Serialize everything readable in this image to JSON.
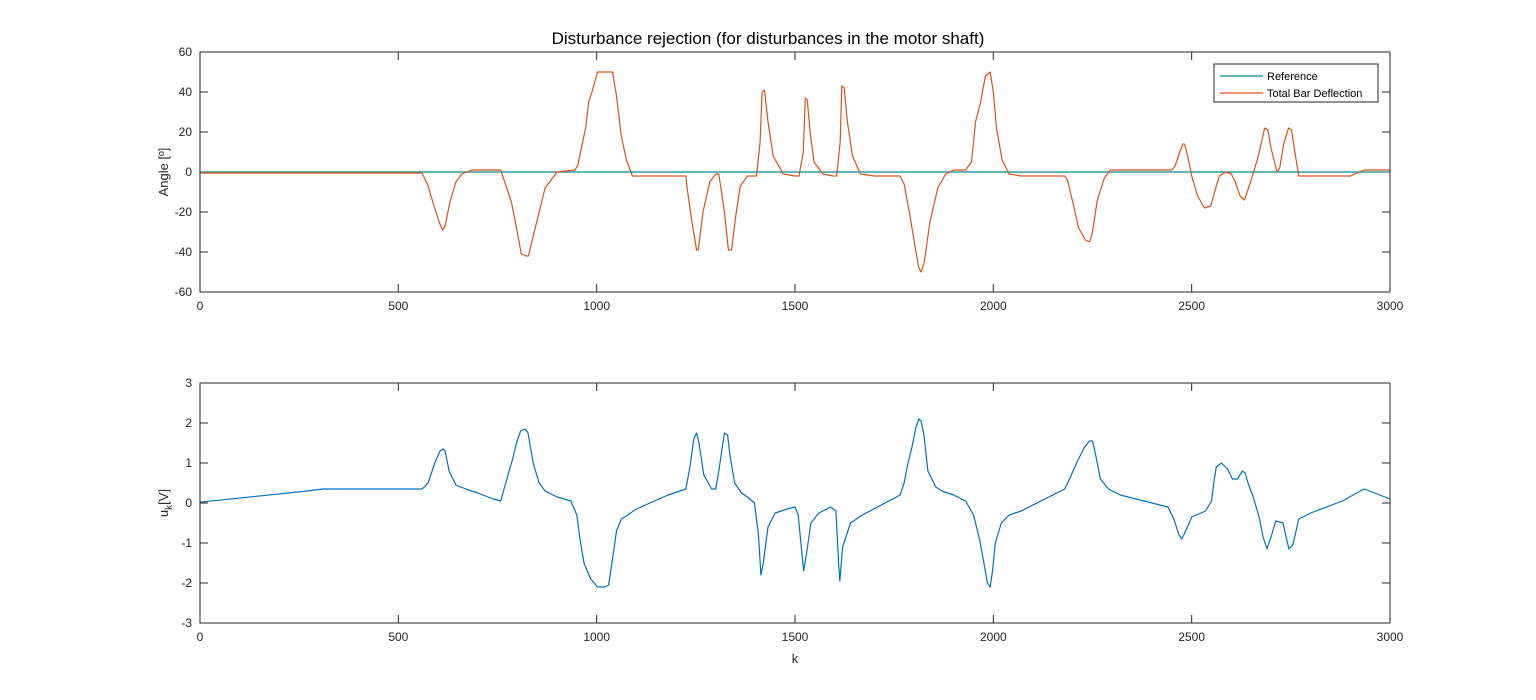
{
  "chart_data": [
    {
      "type": "line",
      "title": "Disturbance rejection (for disturbances in the motor shaft)",
      "xlabel": "",
      "ylabel": "Angle [º]",
      "xlim": [
        0,
        3000
      ],
      "ylim": [
        -60,
        60
      ],
      "xticks": [
        0,
        500,
        1000,
        1500,
        2000,
        2500,
        3000
      ],
      "yticks": [
        -60,
        -40,
        -20,
        0,
        20,
        40,
        60
      ],
      "grid": false,
      "legend_position": "top-right",
      "series": [
        {
          "name": "Reference",
          "color": "#0f8a8f",
          "x": [
            0,
            3000
          ],
          "y": [
            0,
            0
          ]
        },
        {
          "name": "Total Bar Deflection",
          "color": "#d95319",
          "x": [
            0,
            560,
            575,
            590,
            603,
            611,
            618,
            630,
            645,
            660,
            685,
            758,
            765,
            785,
            798,
            810,
            823,
            828,
            845,
            870,
            900,
            945,
            952,
            972,
            980,
            988,
            1002,
            1040,
            1050,
            1062,
            1075,
            1090,
            1150,
            1225,
            1228,
            1240,
            1252,
            1256,
            1268,
            1285,
            1300,
            1308,
            1322,
            1332,
            1340,
            1352,
            1362,
            1380,
            1403,
            1412,
            1417,
            1423,
            1432,
            1445,
            1470,
            1500,
            1510,
            1521,
            1526,
            1531,
            1538,
            1548,
            1570,
            1595,
            1605,
            1614,
            1618,
            1624,
            1632,
            1645,
            1665,
            1700,
            1765,
            1775,
            1790,
            1805,
            1812,
            1818,
            1826,
            1840,
            1860,
            1880,
            1900,
            1930,
            1945,
            1955,
            1968,
            1980,
            1992,
            2000,
            2008,
            2022,
            2040,
            2070,
            2180,
            2187,
            2200,
            2215,
            2232,
            2243,
            2250,
            2262,
            2280,
            2295,
            2320,
            2450,
            2458,
            2470,
            2478,
            2482,
            2490,
            2500,
            2515,
            2532,
            2548,
            2562,
            2570,
            2585,
            2600,
            2610,
            2622,
            2633,
            2640,
            2650,
            2668,
            2684,
            2692,
            2700,
            2715,
            2722,
            2732,
            2744,
            2752,
            2760,
            2770,
            2800,
            2900,
            2935,
            2945,
            2950,
            3000
          ],
          "y": [
            -0.5,
            -0.5,
            -7,
            -17,
            -25,
            -29,
            -27,
            -15,
            -5,
            -1,
            1,
            1,
            -3,
            -15,
            -28,
            -41,
            -42,
            -42,
            -28,
            -8,
            0,
            1,
            3,
            22,
            35,
            40,
            50,
            50,
            38,
            18,
            6,
            -2,
            -2,
            -2,
            -8,
            -25,
            -39,
            -39,
            -20,
            -5,
            -1,
            -1,
            -20,
            -39,
            -39,
            -20,
            -7,
            -2,
            -2,
            15,
            40,
            41,
            25,
            8,
            -1,
            -2,
            -2,
            10,
            37,
            36,
            20,
            5,
            -1,
            -2,
            -2,
            15,
            43,
            42,
            25,
            8,
            -1,
            -2,
            -2,
            -6,
            -22,
            -40,
            -48,
            -50,
            -45,
            -25,
            -8,
            -1,
            1,
            1,
            5,
            25,
            35,
            48,
            50,
            40,
            22,
            6,
            -1,
            -2,
            -2,
            -4,
            -15,
            -28,
            -34,
            -35,
            -30,
            -14,
            -3,
            1,
            1,
            1,
            3,
            10,
            14,
            14,
            8,
            -2,
            -12,
            -18,
            -17,
            -7,
            -2,
            0,
            -1,
            -5,
            -12,
            -14,
            -10,
            -4,
            8,
            22,
            21,
            12,
            0,
            2,
            14,
            22,
            21,
            10,
            -2,
            -2,
            -2,
            1,
            1,
            1,
            1
          ]
        }
      ]
    },
    {
      "type": "line",
      "title": "",
      "xlabel": "k",
      "ylabel": "u_k [V]",
      "ylabel_main": "u",
      "ylabel_sub": "k",
      "ylabel_rest": "[V]",
      "xlim": [
        0,
        3000
      ],
      "ylim": [
        -3,
        3
      ],
      "xticks": [
        0,
        500,
        1000,
        1500,
        2000,
        2500,
        3000
      ],
      "yticks": [
        -3,
        -2,
        -1,
        0,
        1,
        2,
        3
      ],
      "grid": false,
      "series": [
        {
          "color": "#0072bd",
          "x": [
            0,
            270,
            310,
            340,
            560,
            575,
            592,
            605,
            612,
            618,
            628,
            645,
            670,
            700,
            740,
            758,
            768,
            788,
            798,
            808,
            820,
            827,
            840,
            855,
            870,
            900,
            935,
            950,
            958,
            968,
            985,
            1002,
            1020,
            1030,
            1040,
            1050,
            1062,
            1078,
            1100,
            1180,
            1225,
            1235,
            1245,
            1252,
            1258,
            1270,
            1290,
            1300,
            1308,
            1322,
            1330,
            1336,
            1348,
            1365,
            1380,
            1398,
            1408,
            1414,
            1420,
            1432,
            1450,
            1480,
            1500,
            1508,
            1516,
            1522,
            1530,
            1540,
            1560,
            1590,
            1603,
            1610,
            1613,
            1620,
            1640,
            1670,
            1765,
            1775,
            1785,
            1795,
            1805,
            1812,
            1818,
            1825,
            1835,
            1855,
            1870,
            1900,
            1930,
            1950,
            1965,
            1978,
            1985,
            1992,
            1998,
            2005,
            2020,
            2040,
            2070,
            2180,
            2192,
            2210,
            2230,
            2243,
            2250,
            2258,
            2270,
            2290,
            2320,
            2440,
            2455,
            2468,
            2475,
            2485,
            2500,
            2535,
            2550,
            2557,
            2562,
            2575,
            2590,
            2603,
            2615,
            2628,
            2635,
            2642,
            2655,
            2670,
            2680,
            2690,
            2700,
            2712,
            2730,
            2745,
            2755,
            2770,
            2800,
            2880,
            2925,
            2935,
            3000
          ],
          "y": [
            0.02,
            0.3,
            0.35,
            0.35,
            0.35,
            0.5,
            1.0,
            1.3,
            1.35,
            1.3,
            0.8,
            0.45,
            0.35,
            0.25,
            0.1,
            0.05,
            0.4,
            1.1,
            1.5,
            1.8,
            1.85,
            1.75,
            1.0,
            0.5,
            0.3,
            0.15,
            0.05,
            -0.3,
            -0.9,
            -1.5,
            -1.9,
            -2.1,
            -2.1,
            -2.05,
            -1.4,
            -0.7,
            -0.4,
            -0.3,
            -0.15,
            0.2,
            0.35,
            0.9,
            1.6,
            1.75,
            1.5,
            0.7,
            0.35,
            0.35,
            0.8,
            1.75,
            1.7,
            1.2,
            0.5,
            0.25,
            0.15,
            0.0,
            -0.8,
            -1.8,
            -1.5,
            -0.6,
            -0.25,
            -0.15,
            -0.1,
            -0.3,
            -1.1,
            -1.7,
            -1.2,
            -0.5,
            -0.25,
            -0.1,
            -0.2,
            -1.5,
            -1.95,
            -1.1,
            -0.5,
            -0.3,
            0.2,
            0.5,
            1.0,
            1.4,
            1.9,
            2.1,
            2.05,
            1.7,
            0.8,
            0.4,
            0.3,
            0.2,
            0.05,
            -0.3,
            -0.9,
            -1.6,
            -2.0,
            -2.1,
            -1.7,
            -1.0,
            -0.5,
            -0.3,
            -0.2,
            0.35,
            0.6,
            1.0,
            1.4,
            1.55,
            1.55,
            1.2,
            0.6,
            0.35,
            0.2,
            -0.1,
            -0.4,
            -0.8,
            -0.9,
            -0.7,
            -0.35,
            -0.2,
            0.05,
            0.6,
            0.9,
            1.0,
            0.85,
            0.6,
            0.6,
            0.8,
            0.75,
            0.5,
            0.15,
            -0.35,
            -0.85,
            -1.15,
            -0.85,
            -0.45,
            -0.5,
            -1.15,
            -1.05,
            -0.4,
            -0.25,
            0.05,
            0.3,
            0.35,
            0.1
          ]
        }
      ]
    }
  ]
}
